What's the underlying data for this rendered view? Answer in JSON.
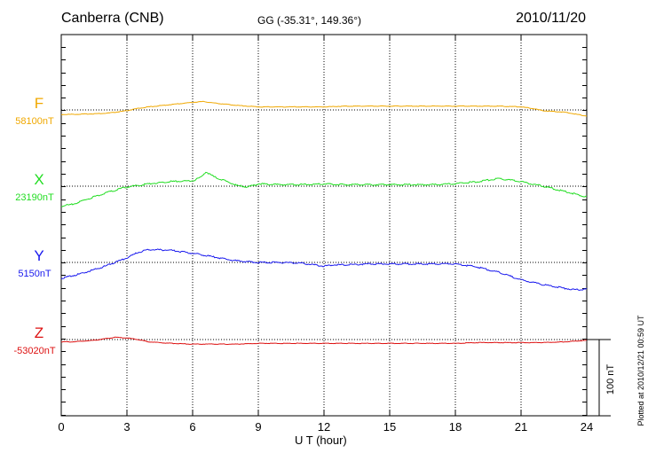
{
  "header": {
    "station": "Canberra (CNB)",
    "coords": "GG (-35.31°, 149.36°)",
    "date": "2010/11/20"
  },
  "plotted_note": "Plotted at 2010/12/21 00:59 UT",
  "scale_bar": {
    "label": "100 nT",
    "value_nT": 100
  },
  "chart_data": {
    "type": "line",
    "xlabel": "U T (hour)",
    "xlim": [
      0,
      24
    ],
    "xticks": [
      0,
      3,
      6,
      9,
      12,
      15,
      18,
      21,
      24
    ],
    "xtick_labels": [
      "0",
      "3",
      "6",
      "9",
      "12",
      "15",
      "18",
      "21",
      "24"
    ],
    "grid": true,
    "series": [
      {
        "name": "F",
        "baseline_label": "58100nT",
        "baseline_nT": 58100,
        "color": "#f0a800",
        "x": [
          0,
          1,
          1.5,
          2,
          2.5,
          3,
          3.5,
          4,
          5,
          6,
          6.5,
          7,
          8,
          9,
          10,
          11,
          12,
          13,
          14,
          15,
          16,
          17,
          18,
          19,
          20,
          21,
          21.5,
          22,
          23,
          24
        ],
        "y": [
          58094,
          58094.5,
          58095,
          58095.5,
          58097,
          58099,
          58102,
          58104,
          58107,
          58110,
          58111,
          58109,
          58106,
          58104,
          58104,
          58104,
          58104,
          58105,
          58105,
          58105,
          58105,
          58105,
          58105,
          58105,
          58105,
          58104,
          58102,
          58099,
          58097,
          58092
        ]
      },
      {
        "name": "X",
        "baseline_label": "23190nT",
        "baseline_nT": 23190,
        "color": "#22dd22",
        "x": [
          0,
          0.5,
          1,
          2,
          3,
          4,
          5,
          6,
          6.4,
          6.6,
          7,
          7.5,
          8,
          8.5,
          9,
          10,
          11,
          12,
          13,
          14,
          15,
          16,
          17,
          18,
          19,
          20,
          21,
          22,
          23,
          24
        ],
        "y": [
          23164,
          23166,
          23171,
          23181,
          23189,
          23193,
          23196,
          23197,
          23202,
          23209,
          23202,
          23197,
          23191,
          23189,
          23193,
          23192,
          23192,
          23193,
          23192,
          23192,
          23192,
          23192,
          23192,
          23193,
          23196,
          23200,
          23196,
          23190,
          23183,
          23176
        ]
      },
      {
        "name": "Y",
        "baseline_label": "5150nT",
        "baseline_nT": 5150,
        "color": "#1a1aee",
        "x": [
          0,
          1,
          2,
          3,
          3.5,
          4,
          5,
          6,
          7,
          8,
          9,
          10,
          11,
          11.5,
          12,
          12.5,
          13,
          14,
          15,
          16,
          17,
          18,
          19,
          20,
          21,
          22,
          23,
          23.5,
          24
        ],
        "y": [
          5129,
          5136,
          5145,
          5156,
          5163,
          5167,
          5166,
          5162,
          5157,
          5152,
          5150,
          5150,
          5149,
          5147,
          5145,
          5147,
          5147,
          5148,
          5148,
          5148,
          5148,
          5148,
          5144,
          5137,
          5127,
          5121,
          5116,
          5114,
          5115
        ]
      },
      {
        "name": "Z",
        "baseline_label": "-53020nT",
        "baseline_nT": -53020,
        "color": "#dd1111",
        "x": [
          0,
          0.5,
          1,
          1.5,
          2,
          2.5,
          3,
          3.5,
          4,
          5,
          6,
          7,
          8,
          9,
          10,
          11,
          12,
          13,
          14,
          15,
          16,
          17,
          18,
          19,
          20,
          21,
          22,
          23,
          24
        ],
        "y": [
          -53023,
          -53023,
          -53022,
          -53021,
          -53019,
          -53017,
          -53018,
          -53020,
          -53023,
          -53025,
          -53026,
          -53026,
          -53026,
          -53025,
          -53025,
          -53025,
          -53025,
          -53025,
          -53025,
          -53025,
          -53025,
          -53025,
          -53025,
          -53024,
          -53024,
          -53024,
          -53024,
          -53023,
          -53021
        ]
      }
    ]
  }
}
